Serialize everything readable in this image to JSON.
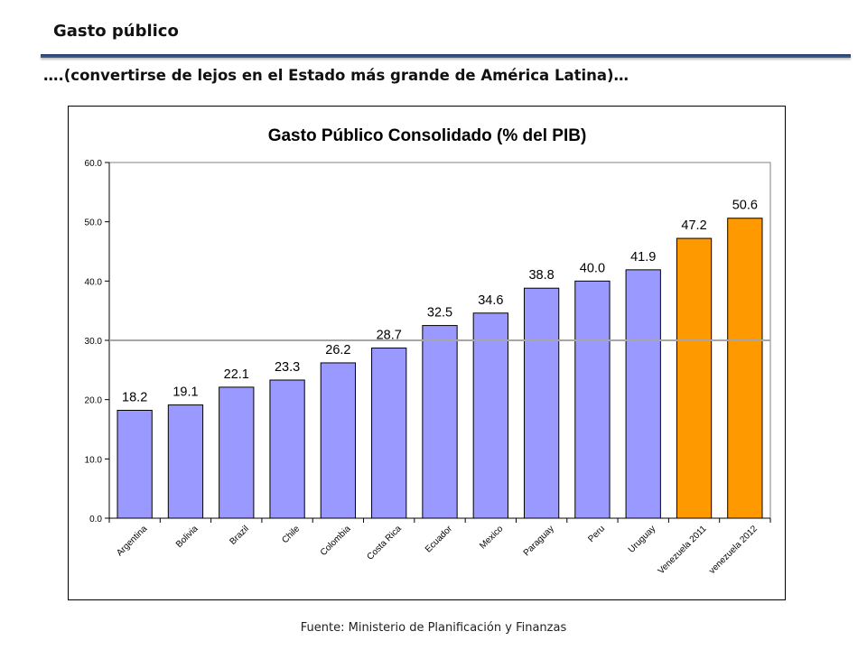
{
  "slide": {
    "title": "Gasto público",
    "subtitle": "….(convertirse de lejos en el Estado más grande de América Latina)…",
    "source": "Fuente: Ministerio de Planificación y Finanzas"
  },
  "chart_data": {
    "type": "bar",
    "title": "Gasto Público Consolidado (% del PIB)",
    "xlabel": "",
    "ylabel": "",
    "categories": [
      "Argentina",
      "Bolivia",
      "Brazil",
      "Chile",
      "Colombia",
      "Costa Rica",
      "Ecuador",
      "Mexico",
      "Paraguay",
      "Peru",
      "Uruguay",
      "Venezuela 2011",
      "venezuela 2012"
    ],
    "values": [
      18.2,
      19.1,
      22.1,
      23.3,
      26.2,
      28.7,
      32.5,
      34.6,
      38.8,
      40.0,
      41.9,
      47.2,
      50.6
    ],
    "value_labels": [
      "18.2",
      "19.1",
      "22.1",
      "23.3",
      "26.2",
      "28.7",
      "32.5",
      "34.6",
      "38.8",
      "40.0",
      "41.9",
      "47.2",
      "50.6"
    ],
    "ylim": [
      0,
      60
    ],
    "yticks": [
      "0.0",
      "10.0",
      "20.0",
      "30.0",
      "40.0",
      "50.0",
      "60.0"
    ],
    "reference_line": 30.0,
    "grid": false,
    "colors": {
      "default": "#9999ff",
      "highlight": "#ff9900",
      "reference_line": "#a6a6a6"
    },
    "highlight_categories": [
      "Venezuela 2011",
      "venezuela 2012"
    ]
  }
}
